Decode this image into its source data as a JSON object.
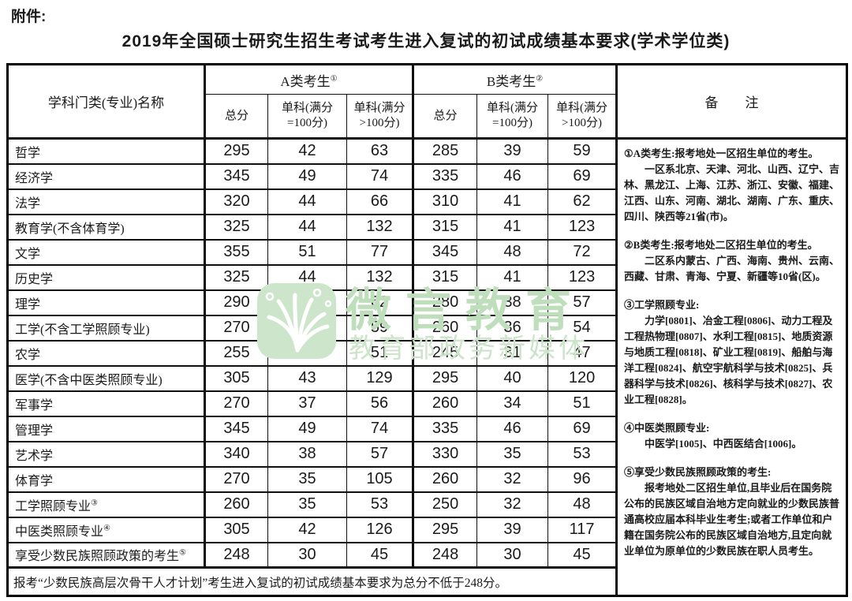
{
  "attachment_label": "附件:",
  "title": "2019年全国硕士研究生招生考试考生进入复试的初试成绩基本要求(学术学位类)",
  "table": {
    "headers": {
      "subject": "学科门类(专业)名称",
      "group_a": "A类考生",
      "group_a_sup": "①",
      "group_b": "B类考生",
      "group_b_sup": "②",
      "total": "总分",
      "single_eq100": [
        "单科(满分",
        "=100分)"
      ],
      "single_gt100": [
        "单科(满分",
        ">100分)"
      ],
      "remarks": "备　　注"
    },
    "rows": [
      {
        "label": "哲学",
        "sup": "",
        "a": [
          295,
          42,
          63
        ],
        "b": [
          285,
          39,
          59
        ]
      },
      {
        "label": "经济学",
        "sup": "",
        "a": [
          345,
          49,
          74
        ],
        "b": [
          335,
          46,
          69
        ]
      },
      {
        "label": "法学",
        "sup": "",
        "a": [
          320,
          44,
          66
        ],
        "b": [
          310,
          41,
          62
        ]
      },
      {
        "label": "教育学(不含体育学)",
        "sup": "",
        "a": [
          325,
          44,
          132
        ],
        "b": [
          315,
          41,
          123
        ]
      },
      {
        "label": "文学",
        "sup": "",
        "a": [
          355,
          51,
          77
        ],
        "b": [
          345,
          48,
          72
        ]
      },
      {
        "label": "历史学",
        "sup": "",
        "a": [
          325,
          44,
          132
        ],
        "b": [
          315,
          41,
          123
        ]
      },
      {
        "label": "理学",
        "sup": "",
        "a": [
          290,
          41,
          62
        ],
        "b": [
          280,
          38,
          57
        ]
      },
      {
        "label": "工学(不含工学照顾专业)",
        "sup": "",
        "a": [
          270,
          39,
          59
        ],
        "b": [
          260,
          36,
          54
        ]
      },
      {
        "label": "农学",
        "sup": "",
        "a": [
          255,
          34,
          51
        ],
        "b": [
          245,
          31,
          47
        ]
      },
      {
        "label": "医学(不含中医类照顾专业)",
        "sup": "",
        "a": [
          305,
          43,
          129
        ],
        "b": [
          295,
          40,
          120
        ]
      },
      {
        "label": "军事学",
        "sup": "",
        "a": [
          270,
          37,
          56
        ],
        "b": [
          260,
          34,
          51
        ]
      },
      {
        "label": "管理学",
        "sup": "",
        "a": [
          345,
          49,
          74
        ],
        "b": [
          335,
          46,
          69
        ]
      },
      {
        "label": "艺术学",
        "sup": "",
        "a": [
          340,
          38,
          57
        ],
        "b": [
          330,
          35,
          53
        ]
      },
      {
        "label": "体育学",
        "sup": "",
        "a": [
          270,
          35,
          105
        ],
        "b": [
          260,
          32,
          96
        ]
      },
      {
        "label": "工学照顾专业",
        "sup": "③",
        "a": [
          260,
          35,
          53
        ],
        "b": [
          250,
          32,
          48
        ]
      },
      {
        "label": "中医类照顾专业",
        "sup": "④",
        "a": [
          305,
          42,
          126
        ],
        "b": [
          295,
          39,
          117
        ]
      },
      {
        "label": "享受少数民族照顾政策的考生",
        "sup": "⑤",
        "a": [
          248,
          30,
          45
        ],
        "b": [
          248,
          30,
          45
        ]
      }
    ],
    "footnote": "报考“少数民族高层次骨干人才计划”考生进入复试的初试成绩基本要求为总分不低于248分。"
  },
  "remarks": [
    {
      "text": "①A类考生:报考地处一区招生单位的考生。",
      "indent": false,
      "gap": false
    },
    {
      "text": "一区系北京、天津、河北、山西、辽宁、吉林、黑龙江、上海、江苏、浙江、安徽、福建、江西、山东、河南、湖北、湖南、广东、重庆、四川、陕西等21省(市)。",
      "indent": true,
      "gap": false
    },
    {
      "text": "②B类考生:报考地处二区招生单位的考生。",
      "indent": false,
      "gap": true
    },
    {
      "text": "二区系内蒙古、广西、海南、贵州、云南、西藏、甘肃、青海、宁夏、新疆等10省(区)。",
      "indent": true,
      "gap": false
    },
    {
      "text": "③工学照顾专业:",
      "indent": false,
      "gap": true
    },
    {
      "text": "力学[0801]、冶金工程[0806]、动力工程及工程热物理[0807]、水利工程[0815]、地质资源与地质工程[0818]、矿业工程[0819]、船舶与海洋工程[0824]、航空宇航科学与技术[0825]、兵器科学与技术[0826]、核科学与技术[0827]、农业工程[0828]。",
      "indent": true,
      "gap": false
    },
    {
      "text": "④中医类照顾专业:",
      "indent": false,
      "gap": true
    },
    {
      "text": "中医学[1005]、中西医结合[1006]。",
      "indent": true,
      "gap": false
    },
    {
      "text": "⑤享受少数民族照顾政策的考生:",
      "indent": false,
      "gap": true
    },
    {
      "text": "报考地处二区招生单位,且毕业后在国务院公布的民族区域自治地方定向就业的少数民族普通高校应届本科毕业生考生;或者工作单位和户籍在国务院公布的民族区域自治地方,且定向就业单位为原单位的少数民族在职人员考生。",
      "indent": true,
      "gap": false
    }
  ],
  "watermark": {
    "brand": "微言教育",
    "caption": "教育部政务新媒体",
    "logo_fill": "#cde5ca",
    "brand_color": "#bfdebc",
    "caption_color": "#cce4c9"
  }
}
